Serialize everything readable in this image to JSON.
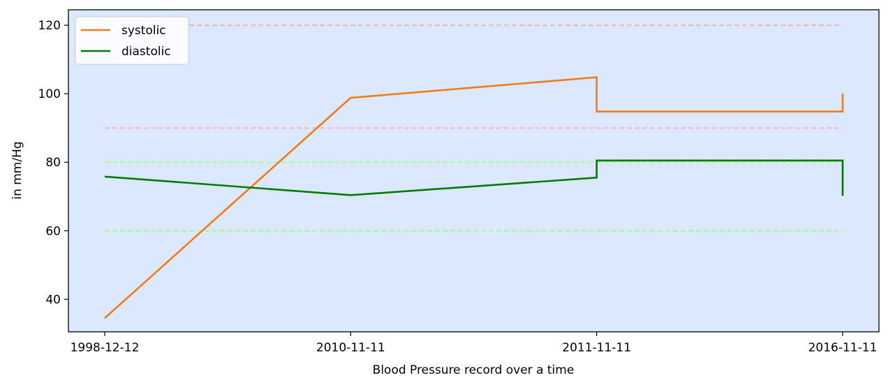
{
  "chart_data": {
    "type": "line",
    "title": "",
    "xlabel": "Blood Pressure record over a time",
    "ylabel": "in mm/Hg",
    "categories": [
      "1998-12-12",
      "2010-11-11",
      "2011-11-11",
      "2016-11-11"
    ],
    "ylim": [
      30.5,
      124.5
    ],
    "yticks": [
      40,
      60,
      80,
      100,
      120
    ],
    "grid": false,
    "background_color": "#dce8fd",
    "legend_position": "top-left",
    "series": [
      {
        "name": "systolic",
        "color": "#f07b1b",
        "points": [
          [
            0,
            34.5
          ],
          [
            1,
            98.8
          ],
          [
            2,
            104.8
          ],
          [
            2,
            94.8
          ],
          [
            3,
            94.8
          ],
          [
            3,
            100
          ]
        ]
      },
      {
        "name": "diastolic",
        "color": "#007b00",
        "points": [
          [
            0,
            75.8
          ],
          [
            1,
            70.4
          ],
          [
            2,
            75.5
          ],
          [
            2,
            80.5
          ],
          [
            3,
            80.5
          ],
          [
            3,
            70.2
          ]
        ]
      }
    ],
    "reference_lines": [
      {
        "y": 120,
        "color": "#ffb3b8"
      },
      {
        "y": 90,
        "color": "#ffb3b8"
      },
      {
        "y": 80,
        "color": "#9dff9d"
      },
      {
        "y": 60,
        "color": "#9dff9d"
      }
    ]
  }
}
